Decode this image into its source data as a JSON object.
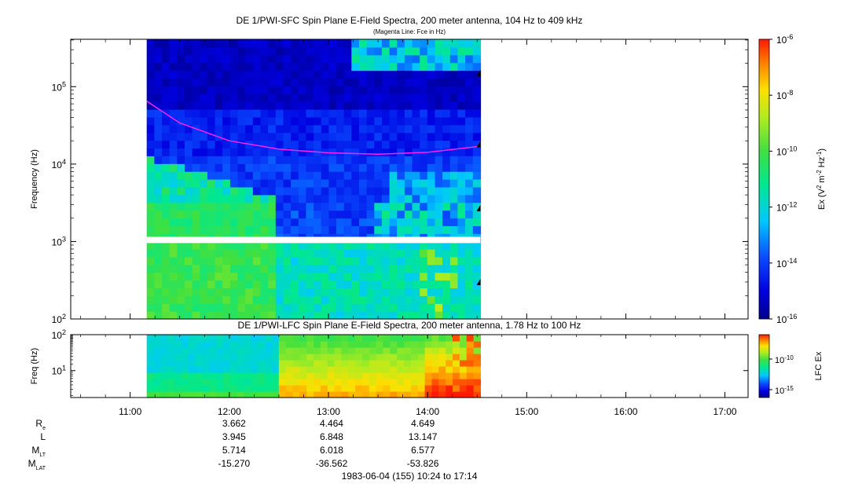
{
  "title_top": "DE 1/PWI-SFC  Spin Plane E-Field Spectra, 200 meter antenna, 104 Hz to 409 kHz",
  "subtitle_top": "(Magenta Line: Fce in Hz)",
  "title_bottom": "DE 1/PWI-LFC  Spin Plane E-Field Spectra, 200 meter antenna, 1.78 Hz to 100 Hz",
  "footer": "1983-06-04 (155) 10:24 to 17:14",
  "colors": {
    "fce_line": "#ff22ff",
    "panel_border": "#000000"
  },
  "chart_data": [
    {
      "type": "heatmap",
      "panel": "SFC",
      "ylabel": "Frequency (Hz)",
      "yscale": "log",
      "ylim": [
        100,
        409000
      ],
      "ytick_labels": [
        "10^2",
        "10^3",
        "10^4",
        "10^5"
      ],
      "xlim": [
        "10:24",
        "17:14"
      ],
      "data_span": [
        "11:10",
        "14:32"
      ],
      "gap_near_hz": 950,
      "colorbar": {
        "label": "Ex (V^2 m^-2 Hz^-1)",
        "scale": "log",
        "range": [
          1e-16,
          1e-06
        ],
        "tick_labels": [
          "10^-6",
          "10^-8",
          "10^-10",
          "10^-12",
          "10^-14",
          "10^-16"
        ]
      },
      "line_series": [
        {
          "name": "Fce",
          "x": [
            "11:10",
            "11:30",
            "12:00",
            "12:30",
            "13:00",
            "13:30",
            "14:00",
            "14:32"
          ],
          "y": [
            65000,
            34000,
            20000,
            15600,
            14000,
            13400,
            14200,
            17000
          ]
        }
      ]
    },
    {
      "type": "heatmap",
      "panel": "LFC",
      "ylabel": "Freq (Hz)",
      "yscale": "log",
      "ylim": [
        1.78,
        100
      ],
      "ytick_labels": [
        "10^1",
        "10^2"
      ],
      "xlim": [
        "10:24",
        "17:14"
      ],
      "data_span": [
        "11:10",
        "14:32"
      ],
      "colorbar": {
        "label": "LFC Ex",
        "scale": "log",
        "tick_labels": [
          "10^-10",
          "10^-15"
        ]
      }
    }
  ],
  "time_axis": {
    "labels": [
      "11:00",
      "12:00",
      "13:00",
      "14:00",
      "15:00",
      "16:00",
      "17:00"
    ]
  },
  "ephemeris": {
    "rows": [
      {
        "label": "R",
        "sub": "e",
        "values": [
          "3.662",
          "4.464",
          "4.649"
        ]
      },
      {
        "label": "L",
        "sub": "",
        "values": [
          "3.945",
          "6.848",
          "13.147"
        ]
      },
      {
        "label": "M",
        "sub": "LT",
        "values": [
          "5.714",
          "6.018",
          "6.577"
        ]
      },
      {
        "label": "M",
        "sub": "LAT",
        "values": [
          "-15.270",
          "-36.562",
          "-53.826"
        ]
      }
    ]
  }
}
